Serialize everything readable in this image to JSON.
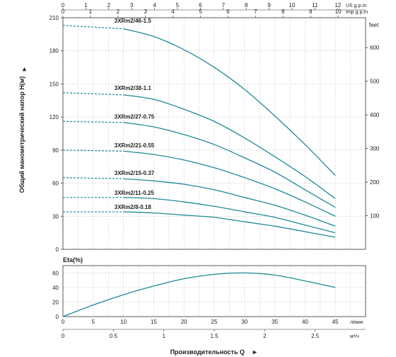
{
  "chart_data": [
    {
      "type": "line",
      "ylabel": "Общий манометрический напор H(м)",
      "ylabel_right": "feet",
      "x_lpm_ticks": [
        "0",
        "5",
        "10",
        "15",
        "20",
        "25",
        "30",
        "35",
        "40",
        "45"
      ],
      "x_lpm_unit": "л/мин",
      "x_m3h_ticks": [
        "0",
        "0.5",
        "1",
        "1.5",
        "2",
        "2.5"
      ],
      "x_m3h_unit": "м³/ч",
      "x_usgpm_ticks": [
        "0",
        "1",
        "2",
        "3",
        "4",
        "5",
        "6",
        "7",
        "8",
        "9",
        "10",
        "11",
        "12"
      ],
      "x_usgpm_unit": "US g.p.m",
      "x_impgpm_ticks": [
        "0",
        "1",
        "2",
        "3",
        "4",
        "5",
        "6",
        "7",
        "8",
        "9",
        "10"
      ],
      "x_impgpm_unit": "Imp g.p.m",
      "y_ticks": [
        "0",
        "30",
        "60",
        "90",
        "120",
        "150",
        "180",
        "210"
      ],
      "y_right_ticks": [
        "100",
        "200",
        "300",
        "400",
        "500",
        "600"
      ],
      "xlim": [
        0,
        50
      ],
      "ylim": [
        0,
        210
      ],
      "grid": true,
      "series": [
        {
          "name": "3XRm2/46-1.5",
          "x": [
            0,
            10,
            15,
            20,
            25,
            30,
            35,
            40,
            45
          ],
          "y": [
            203,
            200,
            193,
            181,
            165,
            145,
            121,
            95,
            67
          ]
        },
        {
          "name": "3XRm2/38-1.1",
          "x": [
            0,
            10,
            15,
            20,
            25,
            30,
            35,
            40,
            45
          ],
          "y": [
            142,
            140,
            136,
            127,
            116,
            101,
            84,
            66,
            46
          ]
        },
        {
          "name": "3XRm2/27-0.75",
          "x": [
            0,
            10,
            15,
            20,
            25,
            30,
            35,
            40,
            45
          ],
          "y": [
            116,
            115,
            111,
            104,
            95,
            83,
            70,
            54,
            38
          ]
        },
        {
          "name": "3XRm2/21-0.55",
          "x": [
            0,
            10,
            15,
            20,
            25,
            30,
            35,
            40,
            45
          ],
          "y": [
            90,
            89,
            86,
            81,
            74,
            65,
            55,
            43,
            30
          ]
        },
        {
          "name": "3XRm2/15-0.37",
          "x": [
            0,
            10,
            15,
            20,
            25,
            30,
            35,
            40,
            45
          ],
          "y": [
            65,
            64,
            62,
            59,
            54,
            47,
            40,
            31,
            21
          ]
        },
        {
          "name": "3XRm2/11-0.25",
          "x": [
            0,
            10,
            15,
            20,
            25,
            30,
            35,
            40,
            45
          ],
          "y": [
            47,
            47,
            46,
            43,
            39,
            34,
            29,
            22,
            15
          ]
        },
        {
          "name": "3XRm2/8-0.18",
          "x": [
            0,
            10,
            15,
            20,
            25,
            30,
            35,
            40,
            45
          ],
          "y": [
            34,
            34,
            33,
            31,
            29,
            25,
            21,
            16,
            11
          ]
        }
      ]
    },
    {
      "type": "line",
      "ylabel": "Eta(%)",
      "y_ticks": [
        "0",
        "20",
        "40",
        "60"
      ],
      "ylim": [
        0,
        70
      ],
      "series": [
        {
          "x": [
            0,
            5,
            10,
            15,
            20,
            25,
            30,
            35,
            40,
            45
          ],
          "y": [
            0,
            16,
            30,
            42,
            52,
            58,
            60,
            57,
            49,
            40
          ]
        }
      ]
    }
  ],
  "footer": {
    "xlabel": "Производительность Q",
    "arrow": "►"
  },
  "colors": {
    "curve": "#1f8a96",
    "axis": "#333333",
    "grid": "#c8c8c8"
  }
}
